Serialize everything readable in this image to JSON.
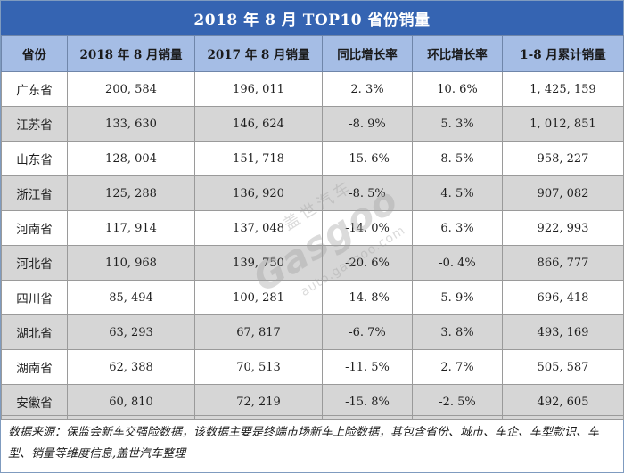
{
  "title": "2018 年 8 月 TOP10 省份销量",
  "columns": [
    "省份",
    "2018 年 8 月销量",
    "2017 年 8 月销量",
    "同比增长率",
    "环比增长率",
    "1-8 月累计销量"
  ],
  "rows": [
    [
      "广东省",
      "200, 584",
      "196, 011",
      "2. 3%",
      "10. 6%",
      "1, 425, 159"
    ],
    [
      "江苏省",
      "133, 630",
      "146, 624",
      "-8. 9%",
      "5. 3%",
      "1, 012, 851"
    ],
    [
      "山东省",
      "128, 004",
      "151, 718",
      "-15. 6%",
      "8. 5%",
      "958, 227"
    ],
    [
      "浙江省",
      "125, 288",
      "136, 920",
      "-8. 5%",
      "4. 5%",
      "907, 082"
    ],
    [
      "河南省",
      "117, 914",
      "137, 048",
      "-14. 0%",
      "6. 3%",
      "922, 993"
    ],
    [
      "河北省",
      "110, 968",
      "139, 750",
      "-20. 6%",
      "-0. 4%",
      "866, 777"
    ],
    [
      "四川省",
      "85, 494",
      "100, 281",
      "-14. 8%",
      "5. 9%",
      "696, 418"
    ],
    [
      "湖北省",
      "63, 293",
      "67, 817",
      "-6. 7%",
      "3. 8%",
      "493, 169"
    ],
    [
      "湖南省",
      "62, 388",
      "70, 513",
      "-11. 5%",
      "2. 7%",
      "505, 587"
    ],
    [
      "安徽省",
      "60, 810",
      "72, 219",
      "-15. 8%",
      "-2. 5%",
      "492, 605"
    ]
  ],
  "footnote": "数据来源：保监会新车交强险数据，该数据主要是终端市场新车上险数据，其包含省份、城市、车企、车型款识、车型、销量等维度信息,盖世汽车整理",
  "watermark": {
    "brand": "Gasgoo",
    "cn": "盖世汽车",
    "url": "auto.gasgoo.com"
  }
}
